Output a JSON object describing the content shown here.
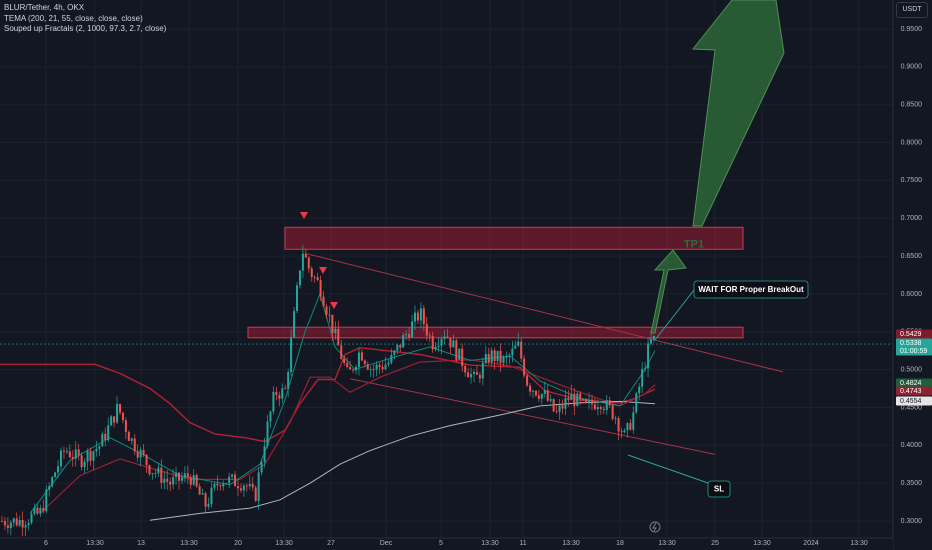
{
  "header": {
    "symbol_line": "BLUR/Tether, 4h, OKX",
    "indicator_1": "TEMA (200, 21, 55, close, close, close)",
    "indicator_2": "Souped up Fractals (2, 1000, 97.3, 2.7, close)",
    "currency": "USDT"
  },
  "chart_data": {
    "type": "line",
    "title": "BLUR/Tether, 4h, OKX",
    "y_axis": {
      "ylim": [
        0.29,
        0.985
      ],
      "ticks": [
        "0.9500",
        "0.9000",
        "0.8500",
        "0.8000",
        "0.7500",
        "0.7000",
        "0.6500",
        "0.6000",
        "0.5500",
        "0.5000",
        "0.4500",
        "0.4000",
        "0.3500",
        "0.3000"
      ]
    },
    "x_axis": {
      "ticks": [
        "6",
        "13:30",
        "13",
        "13:30",
        "20",
        "13:30",
        "27",
        "Dec",
        "5",
        "13:30",
        "11",
        "13:30",
        "18",
        "13:30",
        "25",
        "13:30",
        "2024",
        "13:30"
      ]
    },
    "price_labels": [
      {
        "value": "0.5429",
        "color": "#7d1d2c"
      },
      {
        "value": "0.5338",
        "color": "#26a69a"
      },
      {
        "value": "01:00:59",
        "color": "#26a69a"
      },
      {
        "value": "0.4824",
        "color": "#1f5e3b"
      },
      {
        "value": "0.4743",
        "color": "#8b2332"
      },
      {
        "value": "0.4554",
        "color": "#e6e6e6"
      }
    ],
    "zones": [
      {
        "name": "TP1",
        "low": 0.659,
        "high": 0.688
      },
      {
        "name": "breakout",
        "low": 0.542,
        "high": 0.556
      }
    ],
    "annotations": {
      "tp_label": "TP1",
      "wait_label": "WAIT FOR Proper BreakOut",
      "sl_label": "SL"
    },
    "series": [
      {
        "name": "TEMA 200",
        "color": "#b2b5be"
      },
      {
        "name": "TEMA 21",
        "color": "#0f8a7a"
      },
      {
        "name": "TEMA 55",
        "color": "#9c1f33"
      }
    ],
    "colors": {
      "up": "#26a69a",
      "down": "#ef5350",
      "zone": "#b71c35",
      "arrow": "#2e6b3a",
      "grid": "#1c2030",
      "background": "#131722"
    }
  }
}
